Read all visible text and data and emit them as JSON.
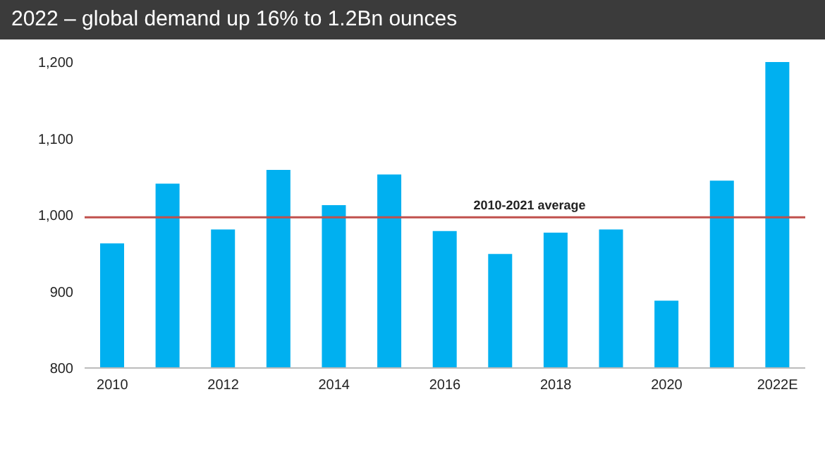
{
  "chart_data": {
    "type": "bar",
    "title": "2022 – global demand up 16% to 1.2Bn ounces",
    "categories": [
      "2010",
      null,
      "2012",
      null,
      "2014",
      null,
      "2016",
      null,
      "2018",
      null,
      "2020",
      null,
      "2022E"
    ],
    "values": [
      963,
      1041,
      981,
      1059,
      1013,
      1053,
      979,
      949,
      977,
      981,
      888,
      1045,
      1200
    ],
    "color": "#00b0f0",
    "ylim": [
      800,
      1200
    ],
    "yticks": [
      {
        "value": 800,
        "label": "800"
      },
      {
        "value": 900,
        "label": "900"
      },
      {
        "value": 1000,
        "label": "1,000"
      },
      {
        "value": 1100,
        "label": "1,100"
      },
      {
        "value": 1200,
        "label": "1,200"
      }
    ],
    "ref_lines": [
      {
        "axis": "y",
        "value": 997,
        "label": "2010-2021 average",
        "color": "#c0504d"
      }
    ],
    "grid": false,
    "legend": false
  }
}
